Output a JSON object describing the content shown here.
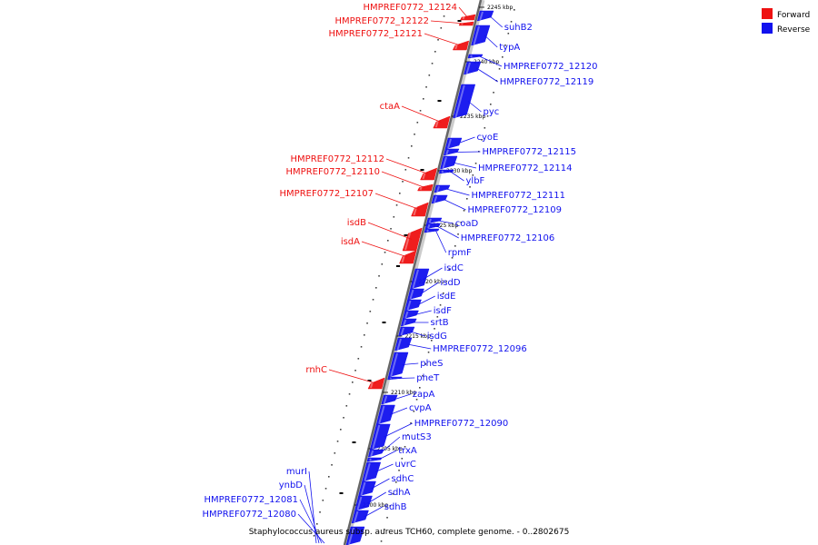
{
  "map": {
    "title": "Staphylococcus aureus subsp. aureus TCH60, complete genome. - 0..2802675",
    "legend": [
      {
        "label": "Forward",
        "color": "#ee1111"
      },
      {
        "label": "Reverse",
        "color": "#1111ee"
      }
    ],
    "ticks": [
      "2245 kbp",
      "2240 kbp",
      "2235 kbp",
      "2230 kbp",
      "2225 kbp",
      "2220 kbp",
      "2215 kbp",
      "2210 kbp",
      "2205 kbp",
      "2200 kbp"
    ],
    "forward_genes": [
      "HMPREF0772_12124",
      "HMPREF0772_12122",
      "HMPREF0772_12121",
      "ctaA",
      "HMPREF0772_12112",
      "HMPREF0772_12110",
      "HMPREF0772_12107",
      "isdB",
      "isdA",
      "rnhC"
    ],
    "reverse_genes": [
      "suhB2",
      "typA",
      "HMPREF0772_12120",
      "HMPREF0772_12119",
      "pyc",
      "cyoE",
      "HMPREF0772_12115",
      "HMPREF0772_12114",
      "ylbF",
      "HMPREF0772_12111",
      "HMPREF0772_12109",
      "coaD",
      "HMPREF0772_12106",
      "rpmF",
      "isdC",
      "isdD",
      "isdE",
      "isdF",
      "srtB",
      "isdG",
      "HMPREF0772_12096",
      "pheS",
      "pheT",
      "zapA",
      "cvpA",
      "HMPREF0772_12090",
      "mutS3",
      "trxA",
      "uvrC",
      "sdhC",
      "sdhA",
      "sdhB"
    ],
    "left_reverse_genes": [
      "murI",
      "ynbD",
      "HMPREF0772_12081",
      "HMPREF0772_12080"
    ]
  }
}
